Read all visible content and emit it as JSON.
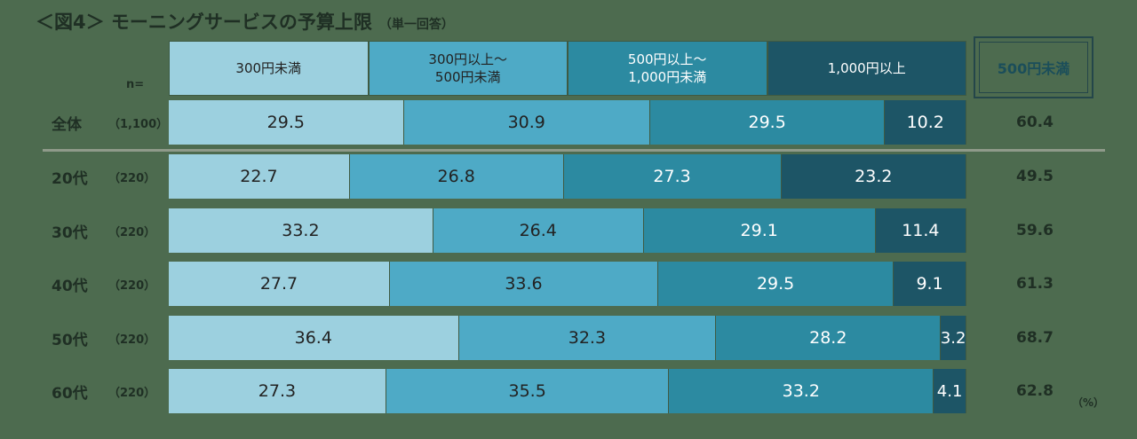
{
  "title": "＜図4＞ モーニングサービスの予算上限",
  "title_note": "（単一回答）",
  "n_header": "n=",
  "summary_header": "500円未満",
  "percent_unit": "（%）",
  "colors": [
    "#9cd0df",
    "#4eaac6",
    "#2c8aa1",
    "#1d5566"
  ],
  "text_colors": [
    "#222222",
    "#222222",
    "#ffffff",
    "#ffffff"
  ],
  "chart_data": {
    "type": "bar",
    "orientation": "horizontal",
    "stacked": true,
    "categories": [
      "全体",
      "20代",
      "30代",
      "40代",
      "50代",
      "60代"
    ],
    "n": [
      "（1,100）",
      "（220）",
      "（220）",
      "（220）",
      "（220）",
      "（220）"
    ],
    "series": [
      {
        "name": "300円未満",
        "values": [
          29.5,
          22.7,
          33.2,
          27.7,
          36.4,
          27.3
        ]
      },
      {
        "name": "300円以上～\n500円未満",
        "values": [
          30.9,
          26.8,
          26.4,
          33.6,
          32.3,
          35.5
        ]
      },
      {
        "name": "500円以上～\n1,000円未満",
        "values": [
          29.5,
          27.3,
          29.1,
          29.5,
          28.2,
          33.2
        ]
      },
      {
        "name": "1,000円以上",
        "values": [
          10.2,
          23.2,
          11.4,
          9.1,
          3.2,
          4.1
        ]
      }
    ],
    "summary": {
      "name": "500円未満",
      "values": [
        60.4,
        49.5,
        59.6,
        61.3,
        68.7,
        62.8
      ]
    },
    "xlim": [
      0,
      100
    ]
  }
}
